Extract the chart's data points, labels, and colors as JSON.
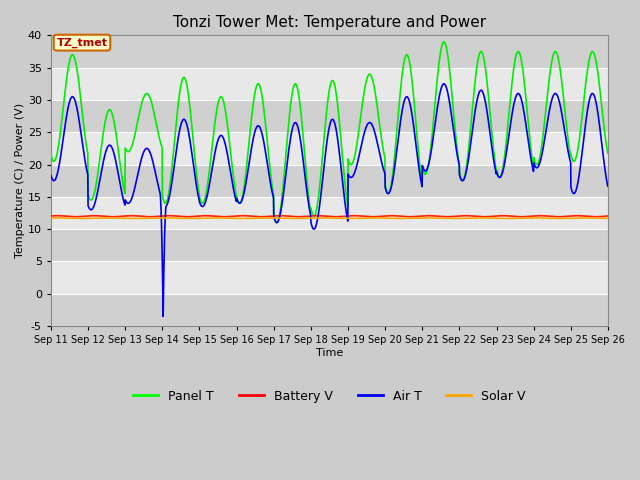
{
  "title": "Tonzi Tower Met: Temperature and Power",
  "xlabel": "Time",
  "ylabel": "Temperature (C) / Power (V)",
  "ylim": [
    -5,
    40
  ],
  "yticks": [
    -5,
    0,
    5,
    10,
    15,
    20,
    25,
    30,
    35,
    40
  ],
  "xtick_labels": [
    "Sep 11",
    "Sep 12",
    "Sep 13",
    "Sep 14",
    "Sep 15",
    "Sep 16",
    "Sep 17",
    "Sep 18",
    "Sep 19",
    "Sep 20",
    "Sep 21",
    "Sep 22",
    "Sep 23",
    "Sep 24",
    "Sep 25",
    "Sep 26"
  ],
  "annotation_text": "TZ_tmet",
  "annotation_box_facecolor": "#FFFFCC",
  "annotation_box_edgecolor": "#CC6600",
  "annotation_text_color": "#AA0000",
  "bg_color": "#CCCCCC",
  "plot_bg_color": "#C8C8C8",
  "grid_color": "#DDDDDD",
  "band_color_light": "#E8E8E8",
  "band_color_dark": "#D0D0D0",
  "legend_entries": [
    "Panel T",
    "Battery V",
    "Air T",
    "Solar V"
  ],
  "legend_colors": [
    "#00FF00",
    "#FF0000",
    "#0000FF",
    "#FFA500"
  ],
  "panel_t_color": "#00EE00",
  "battery_v_color": "#FF2200",
  "air_t_color": "#0000EE",
  "solar_v_color": "#FFA500",
  "line_width": 1.2,
  "n_days": 15,
  "panel_t_peaks": [
    37.0,
    28.5,
    31.0,
    33.5,
    30.5,
    32.5,
    32.5,
    33.0,
    34.0,
    37.0,
    39.0,
    37.5,
    37.5,
    37.5,
    37.5
  ],
  "panel_t_troughs": [
    20.5,
    14.5,
    22.0,
    14.0,
    14.0,
    14.0,
    11.0,
    12.0,
    20.0,
    15.5,
    18.5,
    17.5,
    18.0,
    20.0,
    20.5
  ],
  "air_t_peaks": [
    30.5,
    23.0,
    22.5,
    27.0,
    24.5,
    26.0,
    26.5,
    27.0,
    26.5,
    30.5,
    32.5,
    31.5,
    31.0,
    31.0,
    31.0
  ],
  "air_t_troughs": [
    17.5,
    13.0,
    14.0,
    13.5,
    13.5,
    14.0,
    11.0,
    10.0,
    18.0,
    15.5,
    19.0,
    17.5,
    18.0,
    19.5,
    15.5
  ],
  "air_t_dip_day": 3,
  "air_t_dip_phase": 0.02,
  "air_t_dip_value": -3.5,
  "battery_v_level": 12.0,
  "solar_v_level": 11.7,
  "peak_phase": 0.58,
  "trough_phase": 0.08
}
